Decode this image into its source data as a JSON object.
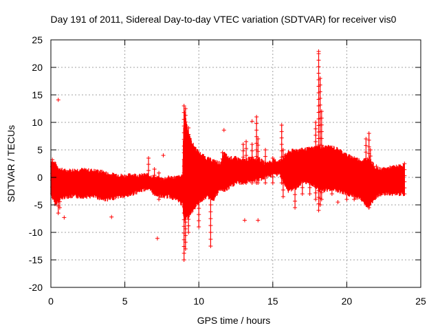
{
  "chart_data": {
    "type": "scatter",
    "title": "Day 191 of 2011, Sidereal Day-to-day VTEC variation (SDTVAR) for receiver vis0",
    "xlabel": "GPS time / hours",
    "ylabel": "SDTVAR / TECUs",
    "xlim": [
      0,
      25
    ],
    "ylim": [
      -20,
      25
    ],
    "xticks": [
      0,
      5,
      10,
      15,
      20,
      25
    ],
    "yticks": [
      -20,
      -15,
      -10,
      -5,
      0,
      5,
      10,
      15,
      20,
      25
    ],
    "grid": true,
    "marker": "+",
    "series_color": "#ff0000",
    "envelope": {
      "description": "dense red band of points, upper and lower limits in TECU vs GPS hour",
      "x": [
        0.0,
        0.3,
        0.6,
        1.0,
        2.0,
        3.0,
        3.5,
        4.0,
        4.5,
        5.0,
        5.5,
        6.0,
        6.5,
        7.0,
        7.5,
        8.0,
        8.5,
        8.9,
        9.0,
        9.3,
        9.6,
        10.0,
        10.5,
        11.0,
        11.5,
        11.7,
        12.0,
        12.5,
        13.0,
        13.5,
        14.0,
        14.5,
        15.0,
        15.5,
        16.0,
        16.5,
        17.0,
        17.5,
        18.0,
        18.5,
        19.0,
        19.5,
        20.0,
        20.5,
        21.0,
        21.5,
        22.0,
        22.5,
        23.0,
        23.5,
        23.9
      ],
      "upper": [
        3.0,
        2.5,
        1.5,
        1.2,
        1.4,
        1.2,
        1.0,
        0.5,
        0.5,
        0.2,
        0.5,
        0.3,
        0.5,
        0.0,
        -0.3,
        0.0,
        0.0,
        0.2,
        12.5,
        8.0,
        6.0,
        4.5,
        3.5,
        3.0,
        2.5,
        4.5,
        3.5,
        3.5,
        3.0,
        3.5,
        3.5,
        2.5,
        3.0,
        3.0,
        4.5,
        5.0,
        5.0,
        5.2,
        5.5,
        5.5,
        5.5,
        5.0,
        4.0,
        3.5,
        3.0,
        3.5,
        1.5,
        1.5,
        1.8,
        2.0,
        2.2
      ],
      "lower": [
        -3.0,
        -5.0,
        -4.0,
        -3.5,
        -3.5,
        -3.5,
        -4.0,
        -4.0,
        -3.5,
        -3.5,
        -3.0,
        -2.5,
        -2.0,
        -3.0,
        -3.5,
        -3.5,
        -4.0,
        -5.0,
        -8.0,
        -7.0,
        -6.0,
        -4.5,
        -3.5,
        -4.0,
        -2.0,
        -2.5,
        -2.0,
        -1.0,
        -1.0,
        -0.5,
        -0.5,
        0.0,
        0.5,
        0.5,
        -2.5,
        -2.0,
        -1.0,
        -1.0,
        -2.0,
        -2.5,
        -2.0,
        -2.5,
        -3.0,
        -3.5,
        -4.0,
        -5.5,
        -3.5,
        -3.0,
        -3.0,
        -3.0,
        -3.0
      ]
    },
    "spikes": [
      {
        "x": 0.1,
        "low": -3,
        "high": 3.2
      },
      {
        "x": 0.5,
        "low": -6.5,
        "high": 0
      },
      {
        "x": 0.6,
        "low": -5.5,
        "high": 0
      },
      {
        "x": 6.6,
        "low": -1,
        "high": 3.5
      },
      {
        "x": 7.0,
        "low": -3,
        "high": 1.5
      },
      {
        "x": 7.3,
        "low": -4,
        "high": 0.8
      },
      {
        "x": 9.0,
        "low": -15,
        "high": 13
      },
      {
        "x": 9.1,
        "low": -13,
        "high": 12.5
      },
      {
        "x": 9.3,
        "low": -10,
        "high": 9
      },
      {
        "x": 10.0,
        "low": -9,
        "high": 0
      },
      {
        "x": 10.8,
        "low": -12.5,
        "high": 0
      },
      {
        "x": 11.6,
        "low": 0,
        "high": 4.5
      },
      {
        "x": 13.0,
        "low": -1,
        "high": 6
      },
      {
        "x": 13.2,
        "low": -1,
        "high": 6.5
      },
      {
        "x": 13.6,
        "low": -1,
        "high": 6
      },
      {
        "x": 13.9,
        "low": -1,
        "high": 11
      },
      {
        "x": 14.0,
        "low": -1,
        "high": 7
      },
      {
        "x": 14.5,
        "low": -1,
        "high": 5
      },
      {
        "x": 15.0,
        "low": -1,
        "high": 3.5
      },
      {
        "x": 15.6,
        "low": -1,
        "high": 9.5
      },
      {
        "x": 15.7,
        "low": -3.5,
        "high": 5
      },
      {
        "x": 16.5,
        "low": -5.5,
        "high": 4
      },
      {
        "x": 17.0,
        "low": -3,
        "high": 5
      },
      {
        "x": 17.5,
        "low": -3,
        "high": 5
      },
      {
        "x": 17.9,
        "low": -4,
        "high": 10
      },
      {
        "x": 18.1,
        "low": -6,
        "high": 22.5
      },
      {
        "x": 18.2,
        "low": -5,
        "high": 18
      },
      {
        "x": 18.3,
        "low": -4,
        "high": 12
      },
      {
        "x": 19.0,
        "low": -3,
        "high": 3
      },
      {
        "x": 20.0,
        "low": -4,
        "high": 3
      },
      {
        "x": 20.5,
        "low": -4,
        "high": 3.5
      },
      {
        "x": 21.3,
        "low": -5,
        "high": 7
      },
      {
        "x": 21.5,
        "low": -5.5,
        "high": 8
      },
      {
        "x": 21.6,
        "low": -4,
        "high": 5
      },
      {
        "x": 22.0,
        "low": -3.5,
        "high": 2
      },
      {
        "x": 23.9,
        "low": -3,
        "high": 2.5
      }
    ],
    "outliers": [
      {
        "x": 0.5,
        "y": 14.1
      },
      {
        "x": 0.9,
        "y": -7.3
      },
      {
        "x": 4.1,
        "y": -7.2
      },
      {
        "x": 7.2,
        "y": -11.1
      },
      {
        "x": 7.6,
        "y": 4.0
      },
      {
        "x": 11.7,
        "y": 8.6
      },
      {
        "x": 13.1,
        "y": -7.8
      },
      {
        "x": 13.6,
        "y": 10.2
      },
      {
        "x": 14.0,
        "y": -7.8
      },
      {
        "x": 18.1,
        "y": 22.9
      },
      {
        "x": 19.4,
        "y": -4.5
      }
    ]
  }
}
